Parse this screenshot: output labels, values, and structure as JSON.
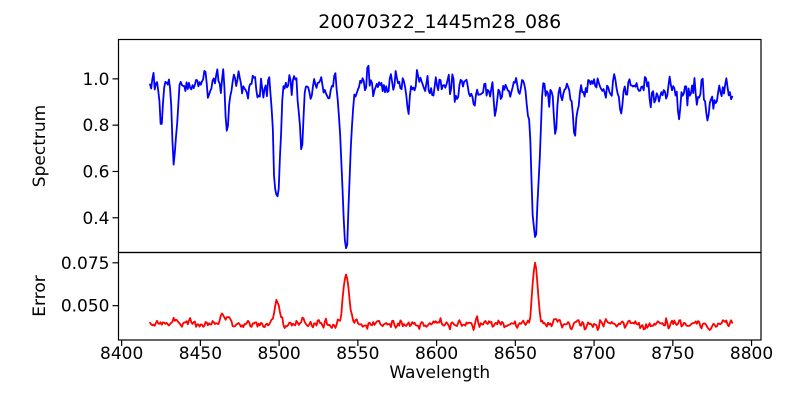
{
  "figure": {
    "background_color": "#ffffff",
    "frame_color": "#000000",
    "text_color": "#000000"
  },
  "chart_data": {
    "type": "line",
    "title": "20070322_1445m28_086",
    "xlabel": "Wavelength",
    "xlim": [
      8398,
      8806
    ],
    "x_ticks": [
      8400,
      8450,
      8500,
      8550,
      8600,
      8650,
      8700,
      8750,
      8800
    ],
    "x_tick_labels": [
      "8400",
      "8450",
      "8500",
      "8550",
      "8600",
      "8650",
      "8700",
      "8750",
      "8800"
    ],
    "x_data_start": 8418,
    "x_data_end": 8788,
    "x_data_step": 0.75,
    "grid": false,
    "legend": "none",
    "panels": [
      {
        "name": "spectrum",
        "ylabel": "Spectrum",
        "ylim": [
          0.25,
          1.17
        ],
        "y_ticks": [
          0.4,
          0.6,
          0.8,
          1.0
        ],
        "y_tick_labels": [
          "0.4",
          "0.6",
          "0.8",
          "1.0"
        ],
        "line_color": "#0000ff",
        "continuum_left": 0.975,
        "continuum_right": 0.952,
        "continuum_wobble_amplitude": 0.008,
        "continuum_wobble_period": 130,
        "noise_sigma": 0.03,
        "noise_seed": 1445086,
        "clip_min": 0.258,
        "absorption_lines": [
          {
            "center": 8425.0,
            "depth": 0.16,
            "width": 1.0
          },
          {
            "center": 8433.5,
            "depth": 0.32,
            "width": 1.3
          },
          {
            "center": 8467.0,
            "depth": 0.19,
            "width": 1.1
          },
          {
            "center": 8498.5,
            "depth": 0.52,
            "width": 1.9
          },
          {
            "center": 8514.0,
            "depth": 0.21,
            "width": 1.2
          },
          {
            "center": 8542.5,
            "depth": 0.7,
            "width": 2.3
          },
          {
            "center": 8582.0,
            "depth": 0.12,
            "width": 1.0
          },
          {
            "center": 8662.5,
            "depth": 0.66,
            "width": 2.1
          },
          {
            "center": 8675.5,
            "depth": 0.19,
            "width": 1.0
          },
          {
            "center": 8688.0,
            "depth": 0.25,
            "width": 1.1
          },
          {
            "center": 8717.0,
            "depth": 0.14,
            "width": 1.0
          },
          {
            "center": 8754.0,
            "depth": 0.14,
            "width": 1.0
          },
          {
            "center": 8772.0,
            "depth": 0.13,
            "width": 1.0
          }
        ]
      },
      {
        "name": "error",
        "ylabel": "Error",
        "ylim": [
          0.03,
          0.081
        ],
        "y_ticks": [
          0.05,
          0.075
        ],
        "y_tick_labels": [
          "0.050",
          "0.075"
        ],
        "line_color": "#ff0000",
        "baseline": 0.0392,
        "noise_sigma_left": 0.0011,
        "noise_sigma_right": 0.0016,
        "noise_seed": 2886,
        "clip_min": 0.0358,
        "clip_max": 0.079,
        "peaks": [
          {
            "center": 8433.0,
            "height": 0.0025,
            "width": 1.5
          },
          {
            "center": 8444.0,
            "height": 0.002,
            "width": 1.2
          },
          {
            "center": 8464.5,
            "height": 0.0055,
            "width": 1.3
          },
          {
            "center": 8468.0,
            "height": 0.0035,
            "width": 1.0
          },
          {
            "center": 8498.5,
            "height": 0.0143,
            "width": 1.6
          },
          {
            "center": 8514.0,
            "height": 0.0022,
            "width": 1.4
          },
          {
            "center": 8542.5,
            "height": 0.028,
            "width": 1.9
          },
          {
            "center": 8662.5,
            "height": 0.035,
            "width": 1.6
          },
          {
            "center": 8676.0,
            "height": 0.0026,
            "width": 1.4
          },
          {
            "center": 8688.0,
            "height": 0.0026,
            "width": 1.4
          }
        ]
      }
    ]
  }
}
